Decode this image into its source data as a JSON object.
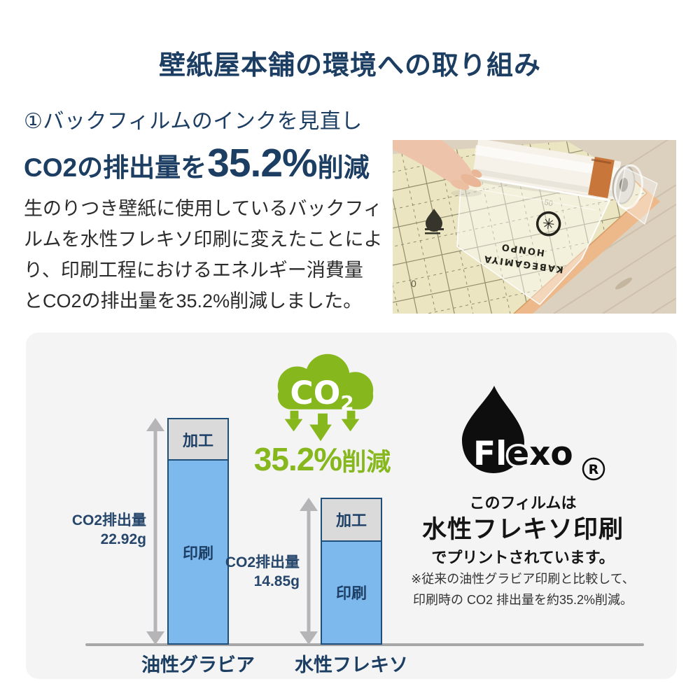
{
  "page_title": "壁紙屋本舗の環境への取り組み",
  "intro": {
    "heading": "①バックフィルムのインクを見直し",
    "highlight": {
      "prefix": "CO2の排出量を",
      "value": "35.2%",
      "suffix": "削減"
    },
    "body_lines": [
      "生のりつき壁紙に使用しているバックフィ",
      "ルムを水性フレキソ印刷に変えたことによ",
      "り、印刷工程におけるエネルギー消費量",
      "とCO2の排出量を35.2%削減しました。"
    ]
  },
  "photo": {
    "alt": "生のりつき壁紙のバックフィルムを手でめくっている写真（白いロールと方眼入りの壁紙）",
    "film_print_line1": "KABEGAMIYA",
    "film_print_line2": "HONPO"
  },
  "chart_data": {
    "type": "bar",
    "stacked": true,
    "title": "",
    "unit": "g CO2",
    "categories": [
      "油性グラビア",
      "水性フレキソ"
    ],
    "series": [
      {
        "name": "加工",
        "values": [
          4.2,
          4.3
        ],
        "color": "#dadada",
        "estimated": true
      },
      {
        "name": "印刷",
        "values": [
          18.72,
          10.55
        ],
        "color": "#7db9ec",
        "estimated": true
      }
    ],
    "totals": [
      {
        "label": "CO2排出量",
        "display": "22.92g",
        "value": 22.92
      },
      {
        "label": "CO2排出量",
        "display": "14.85g",
        "value": 14.85
      }
    ],
    "ylim": [
      0,
      24
    ],
    "legend": "none",
    "grid": false
  },
  "co2_badge": {
    "text_main": "CO",
    "text_sub": "2",
    "reduction_value": "35.2%",
    "reduction_suffix": "削減"
  },
  "flexo": {
    "brand_white_part": "Fl",
    "brand_black_part": "exo",
    "registered_mark": "R",
    "caption_line1": "このフィルムは",
    "caption_line2": "水性フレキソ印刷",
    "caption_line3": "でプリントされています。",
    "footnote_line1": "※従来の油性グラビア印刷と比較して、",
    "footnote_line2": "印刷時の CO2 排出量を約35.2%削減。"
  },
  "colors": {
    "navy": "#1d3e63",
    "green": "#86b71c",
    "bar_blue": "#7db9ec",
    "bar_gray": "#dadada",
    "bar_border": "#1f4e79",
    "panel_bg": "#f4f4f4",
    "axis_gray": "#a7a7a7",
    "arrow_gray": "#b5b5b8"
  }
}
